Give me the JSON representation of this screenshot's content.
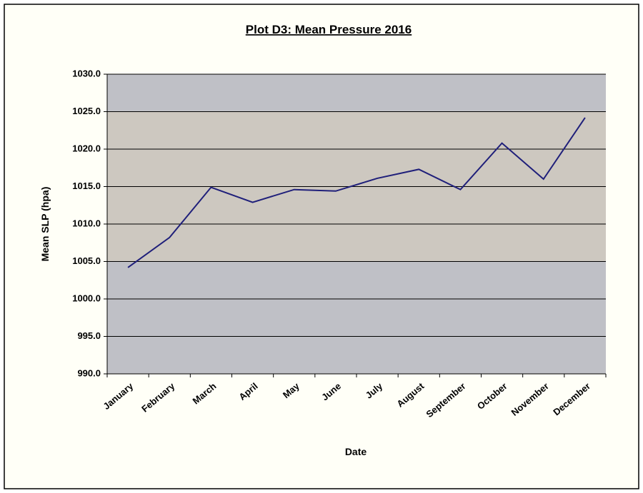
{
  "chart_data": {
    "type": "line",
    "title": "Plot D3: Mean Pressure 2016",
    "x_label": "Date",
    "y_label": "Mean SLP (hpa)",
    "categories": [
      "January",
      "February",
      "March",
      "April",
      "May",
      "June",
      "July",
      "August",
      "September",
      "October",
      "November",
      "December"
    ],
    "series": [
      {
        "name": "Mean SLP",
        "color": "#1f1f7a",
        "values": [
          1004.2,
          1008.2,
          1014.9,
          1012.9,
          1014.6,
          1014.4,
          1016.1,
          1017.3,
          1014.6,
          1020.8,
          1016.0,
          1024.2
        ]
      }
    ],
    "ylim": [
      990,
      1030
    ],
    "yticks": [
      {
        "value": 990,
        "label": "990.0"
      },
      {
        "value": 995,
        "label": "995.0"
      },
      {
        "value": 1000,
        "label": "1000.0"
      },
      {
        "value": 1005,
        "label": "1005.0"
      },
      {
        "value": 1010,
        "label": "1010.0"
      },
      {
        "value": 1015,
        "label": "1015.0"
      },
      {
        "value": 1020,
        "label": "1020.0"
      },
      {
        "value": 1025,
        "label": "1025.0"
      },
      {
        "value": 1030,
        "label": "1030.0"
      }
    ],
    "grid": true,
    "shaded_range": [
      1005,
      1025
    ],
    "shaded_color": "#cdc8c0",
    "plot_background": "#bfc0c6"
  }
}
